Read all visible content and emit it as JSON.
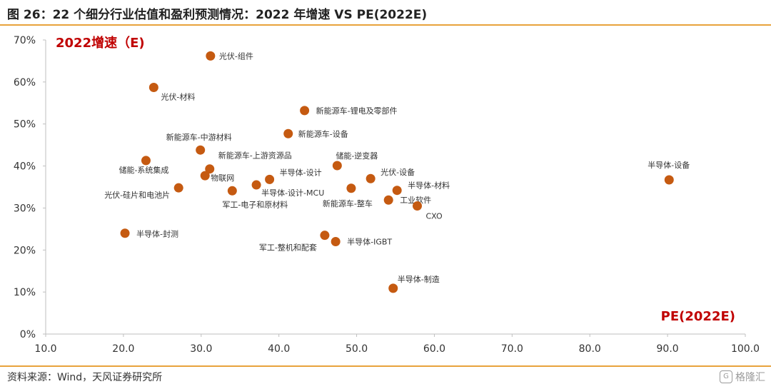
{
  "header": {
    "title": "图 26：22 个细分行业估值和盈利预测情况：2022 年增速 VS PE(2022E)"
  },
  "footer": {
    "source": "资料来源：Wind，天风证券研究所",
    "watermark": "格隆汇"
  },
  "colors": {
    "accent_rule": "#e8a33c",
    "point": "#c55a11",
    "corner_label": "#c00000"
  },
  "chart_data": {
    "type": "scatter",
    "x_label_text": "PE(2022E)",
    "y_label_text": "2022增速（E)",
    "xlim": [
      10,
      100
    ],
    "ylim": [
      0,
      0.7
    ],
    "x_ticks": [
      "10.0",
      "20.0",
      "30.0",
      "40.0",
      "50.0",
      "60.0",
      "70.0",
      "80.0",
      "90.0",
      "100.0"
    ],
    "y_ticks": [
      "0%",
      "10%",
      "20%",
      "30%",
      "40%",
      "50%",
      "60%",
      "70%"
    ],
    "grid": false,
    "points": [
      {
        "label": "光伏-组件",
        "x": 31.2,
        "y": 0.662
      },
      {
        "label": "光伏-材料",
        "x": 23.9,
        "y": 0.587
      },
      {
        "label": "新能源车-锂电及零部件",
        "x": 43.3,
        "y": 0.532
      },
      {
        "label": "新能源车-设备",
        "x": 41.2,
        "y": 0.477
      },
      {
        "label": "新能源车-中游材料",
        "x": 29.9,
        "y": 0.438
      },
      {
        "label": "储能-系统集成",
        "x": 22.9,
        "y": 0.413
      },
      {
        "label": "新能源车-上游资源品",
        "x": 31.1,
        "y": 0.393
      },
      {
        "label": "物联网",
        "x": 30.5,
        "y": 0.377
      },
      {
        "label": "储能-逆变器",
        "x": 47.5,
        "y": 0.401
      },
      {
        "label": "半导体-设计",
        "x": 38.8,
        "y": 0.368
      },
      {
        "label": "光伏-设备",
        "x": 51.8,
        "y": 0.37
      },
      {
        "label": "半导体-设备",
        "x": 90.2,
        "y": 0.367
      },
      {
        "label": "半导体-设计-MCU",
        "x": 37.1,
        "y": 0.355
      },
      {
        "label": "光伏-硅片和电池片",
        "x": 27.1,
        "y": 0.348
      },
      {
        "label": "军工-电子和原材料",
        "x": 34.0,
        "y": 0.341
      },
      {
        "label": "新能源车-整车",
        "x": 49.3,
        "y": 0.347
      },
      {
        "label": "半导体-材料",
        "x": 55.2,
        "y": 0.342
      },
      {
        "label": "工业软件",
        "x": 54.1,
        "y": 0.319
      },
      {
        "label": "CXO",
        "x": 57.8,
        "y": 0.305
      },
      {
        "label": "半导体-封测",
        "x": 20.2,
        "y": 0.24
      },
      {
        "label": "军工-整机和配套",
        "x": 45.9,
        "y": 0.235
      },
      {
        "label": "半导体-IGBT",
        "x": 47.3,
        "y": 0.22
      },
      {
        "label": "半导体-制造",
        "x": 54.7,
        "y": 0.109
      }
    ]
  }
}
